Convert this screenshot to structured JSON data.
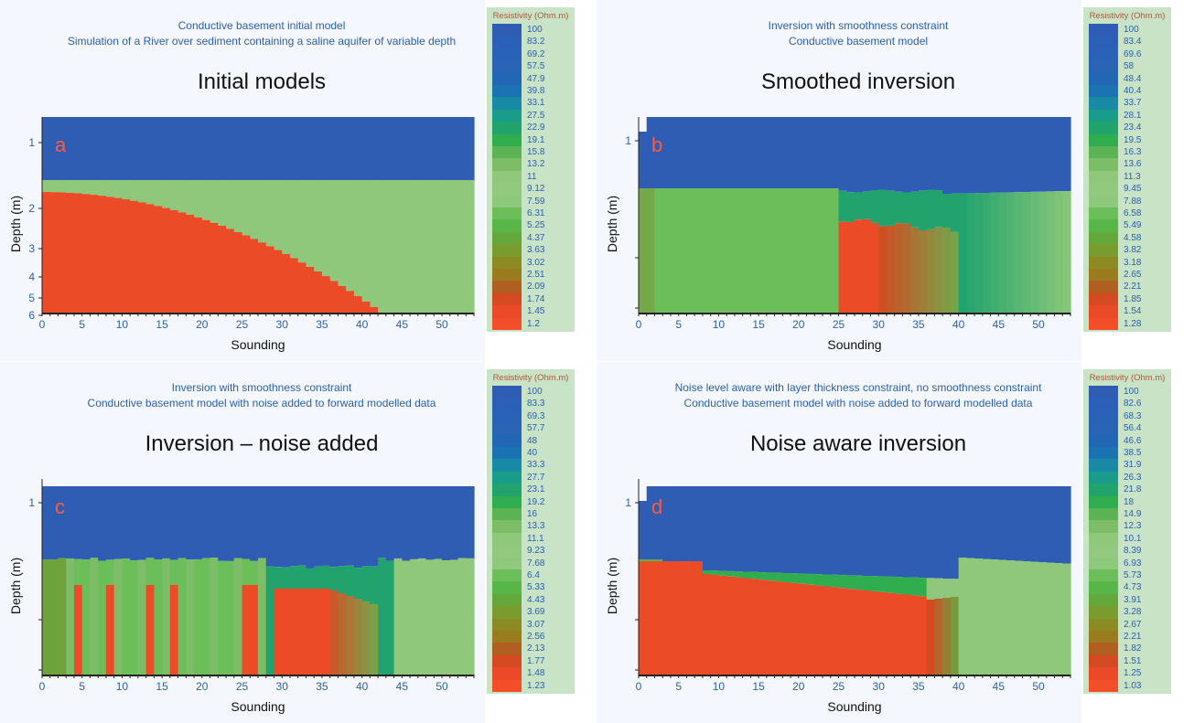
{
  "chart_data": [
    {
      "type": "heatmap",
      "letter": "a",
      "title": "Initial models",
      "subtitle": [
        "Conductive basement initial model",
        "Simulation of a River over sediment containing a saline aquifer of variable depth"
      ],
      "xlabel": "Sounding",
      "ylabel": "Depth (m)",
      "xlim": [
        0,
        54
      ],
      "xticks": [
        0,
        5,
        10,
        15,
        20,
        25,
        30,
        35,
        40,
        45,
        50
      ],
      "yticks": [
        "1",
        "2",
        "3",
        "4",
        "5",
        "6"
      ],
      "colorbar_title": "Resistivity (Ohm.m)",
      "colorbar": [
        "100",
        "83.2",
        "69.2",
        "57.5",
        "47.9",
        "39.8",
        "33.1",
        "27.5",
        "22.9",
        "19.1",
        "15.8",
        "13.2",
        "11",
        "9.12",
        "7.59",
        "6.31",
        "5.25",
        "4.37",
        "3.63",
        "3.02",
        "2.51",
        "2.09",
        "1.74",
        "1.45",
        "1.2"
      ],
      "layers": "top layer ~50-100 Ohm.m over ~9-11 Ohm.m sediment; conductive basement ~1.2 Ohm.m deepening from ~1.7 m at sounding 0 to the base near sounding 42"
    },
    {
      "type": "heatmap",
      "letter": "b",
      "title": "Smoothed inversion",
      "subtitle": [
        "Inversion with smoothness constraint",
        "Conductive basement model"
      ],
      "xlabel": "Sounding",
      "ylabel": "Depth (m)",
      "xlim": [
        0,
        54
      ],
      "xticks": [
        0,
        5,
        10,
        15,
        20,
        25,
        30,
        35,
        40,
        45,
        50
      ],
      "yticks": [
        "1"
      ],
      "colorbar_title": "Resistivity (Ohm.m)",
      "colorbar": [
        "100",
        "83.4",
        "69.6",
        "58",
        "48.4",
        "40.4",
        "33.7",
        "28.1",
        "23.4",
        "19.5",
        "16.3",
        "13.6",
        "11.3",
        "9.45",
        "7.88",
        "6.58",
        "5.49",
        "4.58",
        "3.82",
        "3.18",
        "2.65",
        "2.21",
        "1.85",
        "1.54",
        "1.28"
      ]
    },
    {
      "type": "heatmap",
      "letter": "c",
      "title": "Inversion – noise added",
      "subtitle": [
        "Inversion with smoothness constraint",
        "Conductive basement model with noise added to forward modelled data"
      ],
      "xlabel": "Sounding",
      "ylabel": "Depth (m)",
      "xlim": [
        0,
        54
      ],
      "xticks": [
        0,
        5,
        10,
        15,
        20,
        25,
        30,
        35,
        40,
        45,
        50
      ],
      "yticks": [
        "1"
      ],
      "colorbar_title": "Resistivity (Ohm.m)",
      "colorbar": [
        "100",
        "83.3",
        "69.3",
        "57.7",
        "48",
        "40",
        "33.3",
        "27.7",
        "23.1",
        "19.2",
        "16",
        "13.3",
        "11.1",
        "9.23",
        "7.68",
        "6.4",
        "5.33",
        "4.43",
        "3.69",
        "3.07",
        "2.56",
        "2.13",
        "1.77",
        "1.48",
        "1.23"
      ]
    },
    {
      "type": "heatmap",
      "letter": "d",
      "title": "Noise aware inversion",
      "subtitle": [
        "Noise level aware with layer thickness constraint, no smoothness constraint",
        "Conductive basement model with noise added to forward modelled data"
      ],
      "xlabel": "Sounding",
      "ylabel": "Depth (m)",
      "xlim": [
        0,
        54
      ],
      "xticks": [
        0,
        5,
        10,
        15,
        20,
        25,
        30,
        35,
        40,
        45,
        50
      ],
      "yticks": [
        "1"
      ],
      "colorbar_title": "Resistivity (Ohm.m)",
      "colorbar": [
        "100",
        "82.6",
        "68.3",
        "56.4",
        "46.6",
        "38.5",
        "31.9",
        "26.3",
        "21.8",
        "18",
        "14.9",
        "12.3",
        "10.1",
        "8.39",
        "6.93",
        "5.73",
        "4.73",
        "3.91",
        "3.28",
        "2.67",
        "2.21",
        "1.82",
        "1.51",
        "1.25",
        "1.03"
      ]
    }
  ],
  "colors": {
    "ramp": [
      "#2f5db4",
      "#2b5fb8",
      "#2a62b8",
      "#2a64b5",
      "#2267b4",
      "#1c73b2",
      "#188aa6",
      "#1a9c8a",
      "#22a36e",
      "#30ad4e",
      "#5bb354",
      "#7dbd68",
      "#8fc87a",
      "#92c97e",
      "#8ec87b",
      "#6cbe5b",
      "#58b548",
      "#64a73a",
      "#7a9c2f",
      "#8c8a23",
      "#9a7b1e",
      "#b05f20",
      "#d44a22",
      "#ea4a28",
      "#f24e2a"
    ],
    "top": "#2f5db4",
    "sediment": "#8fc87a",
    "basement": "#ec4b27",
    "blue_text": "#2b5fae"
  }
}
